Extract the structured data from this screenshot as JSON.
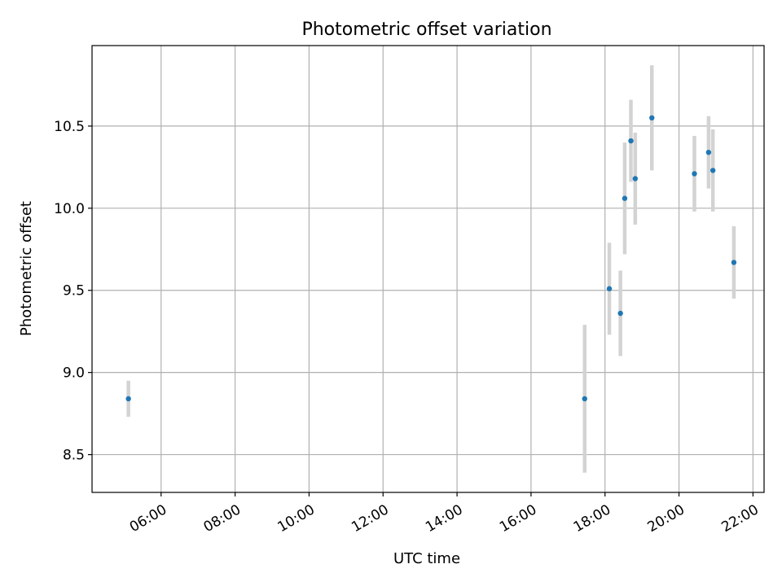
{
  "chart_data": {
    "type": "scatter",
    "title": "Photometric offset variation",
    "xlabel": "UTC time",
    "ylabel": "Photometric offset",
    "x_ticks": [
      "06:00",
      "08:00",
      "10:00",
      "12:00",
      "14:00",
      "16:00",
      "18:00",
      "20:00",
      "22:00"
    ],
    "y_ticks": [
      "8.5",
      "9.0",
      "9.5",
      "10.0",
      "10.5"
    ],
    "xlim": [
      "04:08",
      "22:18"
    ],
    "ylim": [
      8.27,
      10.99
    ],
    "grid": true,
    "colors": {
      "point": "#1f77b4",
      "errorbar": "#d3d3d3",
      "grid": "#b0b0b0",
      "axis": "#000000"
    },
    "points": [
      {
        "x": "05:07",
        "y": 8.84,
        "err": 0.11
      },
      {
        "x": "17:27",
        "y": 8.84,
        "err": 0.45
      },
      {
        "x": "18:07",
        "y": 9.51,
        "err": 0.28
      },
      {
        "x": "18:25",
        "y": 9.36,
        "err": 0.26
      },
      {
        "x": "18:32",
        "y": 10.06,
        "err": 0.34
      },
      {
        "x": "18:42",
        "y": 10.41,
        "err": 0.25
      },
      {
        "x": "18:49",
        "y": 10.18,
        "err": 0.28
      },
      {
        "x": "19:16",
        "y": 10.55,
        "err": 0.32
      },
      {
        "x": "20:25",
        "y": 10.21,
        "err": 0.23
      },
      {
        "x": "20:48",
        "y": 10.34,
        "err": 0.22
      },
      {
        "x": "20:55",
        "y": 10.23,
        "err": 0.25
      },
      {
        "x": "21:29",
        "y": 9.67,
        "err": 0.22
      }
    ]
  }
}
